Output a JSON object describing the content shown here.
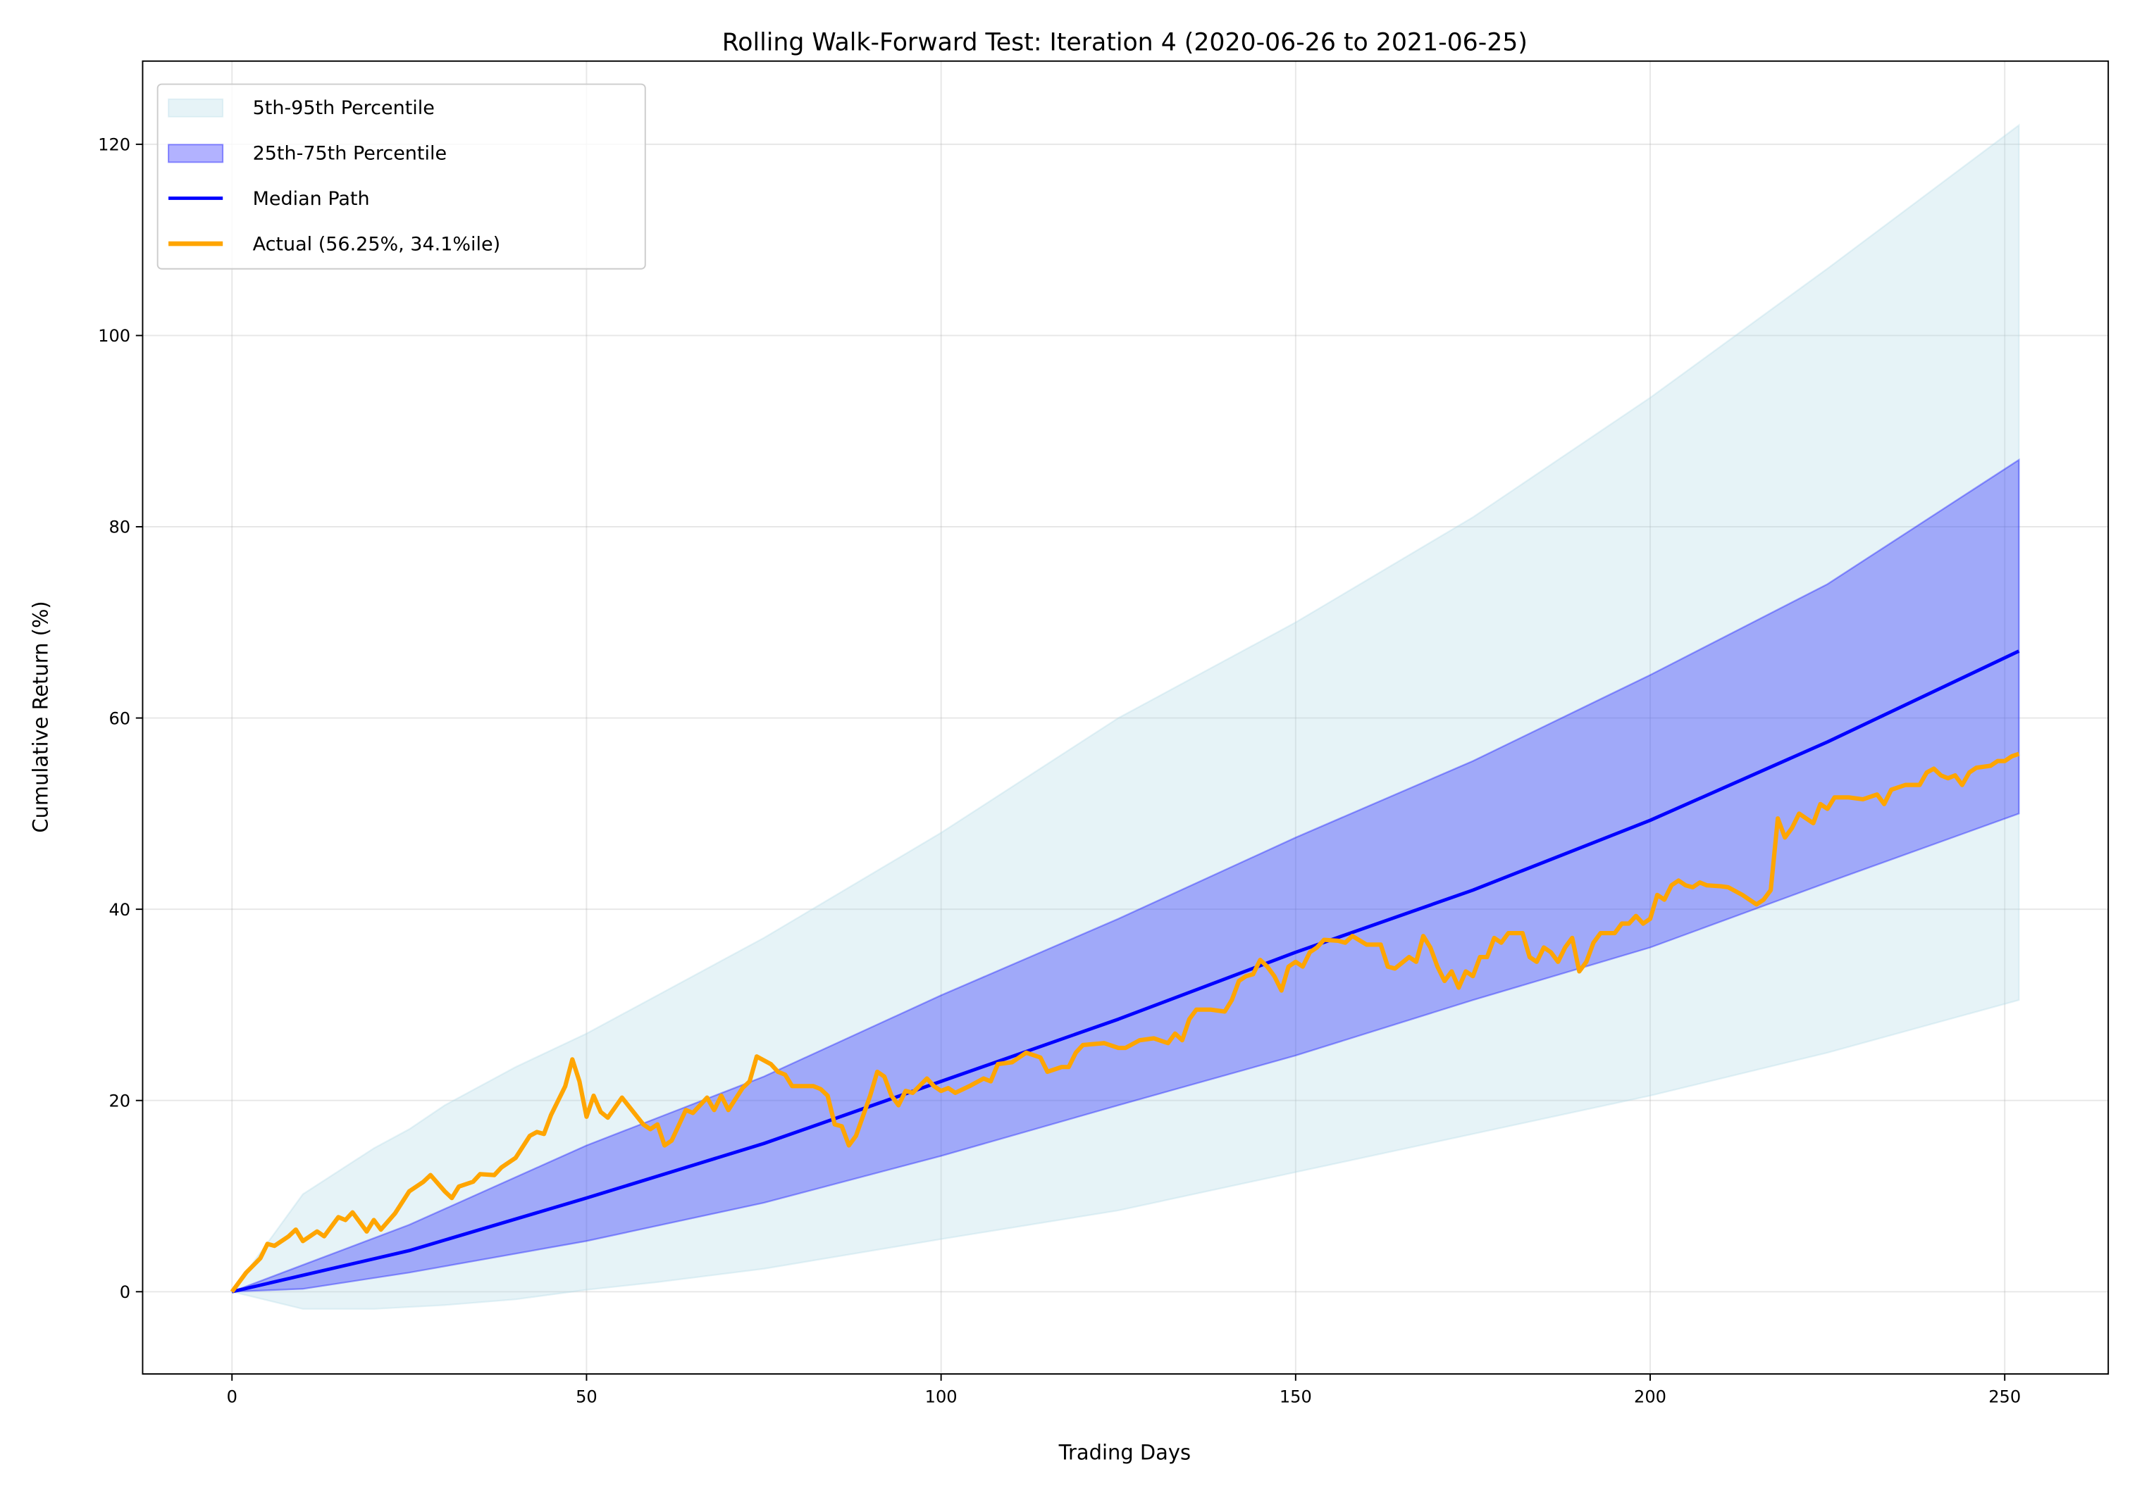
{
  "chart_data": {
    "type": "line",
    "title": "Rolling Walk-Forward Test: Iteration 4 (2020-06-26 to 2021-06-25)",
    "xlabel": "Trading Days",
    "ylabel": "Cumulative Return (%)",
    "xlim": [
      -12.6,
      264.6
    ],
    "ylim": [
      -8.6,
      128.7
    ],
    "xticks": [
      0,
      50,
      100,
      150,
      200,
      250
    ],
    "yticks": [
      0,
      20,
      40,
      60,
      80,
      100,
      120
    ],
    "grid": true,
    "legend_position": "top-left",
    "bands": [
      {
        "name": "5th-95th Percentile",
        "color": "#add8e6",
        "opacity": 0.3,
        "x": [
          0,
          10,
          20,
          25,
          30,
          40,
          50,
          60,
          75,
          100,
          125,
          150,
          175,
          200,
          225,
          252
        ],
        "lower": [
          0,
          -1.8,
          -1.8,
          -1.6,
          -1.4,
          -0.8,
          0.2,
          1.0,
          2.4,
          5.5,
          8.5,
          12.5,
          16.5,
          20.5,
          25,
          30.5
        ],
        "upper": [
          0,
          10.2,
          15,
          17,
          19.5,
          23.5,
          27,
          31,
          37,
          48,
          60,
          70,
          81,
          93.5,
          107,
          122
        ]
      },
      {
        "name": "25th-75th Percentile",
        "color": "#0000ff",
        "opacity": 0.3,
        "x": [
          0,
          10,
          25,
          50,
          75,
          100,
          125,
          150,
          175,
          200,
          225,
          252
        ],
        "lower": [
          0,
          0.3,
          2,
          5.3,
          9.3,
          14.2,
          19.5,
          24.7,
          30.5,
          36,
          42.8,
          50
        ],
        "upper": [
          0,
          2.8,
          7,
          15.3,
          22.5,
          31,
          39,
          47.5,
          55.5,
          64.5,
          74,
          87
        ]
      }
    ],
    "series": [
      {
        "name": "Median Path",
        "color": "#0000ff",
        "x": [
          0,
          25,
          50,
          75,
          100,
          125,
          150,
          175,
          200,
          225,
          252
        ],
        "y": [
          0,
          4.3,
          9.8,
          15.5,
          22,
          28.5,
          35.5,
          42,
          49.3,
          57.5,
          67
        ]
      },
      {
        "name": "Actual (56.25%, 34.1%ile)",
        "color": "#ffa500",
        "x": [
          0,
          2,
          4,
          5,
          6,
          8,
          9,
          10,
          12,
          13,
          15,
          16,
          17,
          19,
          20,
          21,
          23,
          25,
          27,
          28,
          30,
          31,
          32,
          34,
          35,
          37,
          38,
          40,
          42,
          43,
          44,
          45,
          47,
          48,
          49,
          50,
          51,
          52,
          53,
          55,
          58,
          59,
          60,
          61,
          62,
          64,
          65,
          67,
          68,
          69,
          70,
          72,
          73,
          74,
          76,
          77,
          78,
          79,
          82,
          83,
          84,
          85,
          86,
          87,
          88,
          90,
          91,
          92,
          93,
          94,
          95,
          96,
          98,
          99,
          100,
          101,
          102,
          104,
          106,
          107,
          108,
          110,
          112,
          114,
          115,
          117,
          118,
          119,
          120,
          123,
          125,
          126,
          128,
          130,
          132,
          133,
          134,
          135,
          136,
          138,
          140,
          141,
          142,
          143,
          144,
          145,
          146,
          147,
          148,
          149,
          150,
          151,
          152,
          153,
          154,
          156,
          157,
          158,
          160,
          162,
          163,
          164,
          166,
          167,
          168,
          169,
          170,
          171,
          172,
          173,
          174,
          175,
          176,
          177,
          178,
          179,
          180,
          182,
          183,
          184,
          185,
          186,
          187,
          188,
          189,
          190,
          191,
          192,
          193,
          195,
          196,
          197,
          198,
          199,
          200,
          201,
          202,
          203,
          204,
          205,
          206,
          207,
          208,
          210,
          211,
          213,
          214,
          215,
          216,
          217,
          218,
          219,
          220,
          221,
          222,
          223,
          224,
          225,
          226,
          228,
          230,
          232,
          233,
          234,
          236,
          238,
          239,
          240,
          241,
          242,
          243,
          244,
          245,
          246,
          248,
          249,
          250,
          251,
          252
        ],
        "y": [
          0,
          2,
          3.5,
          5,
          4.8,
          5.8,
          6.5,
          5.3,
          6.3,
          5.8,
          7.8,
          7.5,
          8.3,
          6.3,
          7.5,
          6.5,
          8.2,
          10.5,
          11.5,
          12.2,
          10.5,
          9.8,
          11,
          11.5,
          12.3,
          12.2,
          13,
          14,
          16.3,
          16.7,
          16.5,
          18.5,
          21.5,
          24.3,
          22,
          18.3,
          20.5,
          18.8,
          18.2,
          20.3,
          17.5,
          17,
          17.5,
          15.3,
          15.8,
          19,
          18.7,
          20.3,
          19,
          20.5,
          19,
          21.3,
          22,
          24.6,
          23.8,
          23,
          22.7,
          21.5,
          21.5,
          21.2,
          20.5,
          17.5,
          17.3,
          15.3,
          16.3,
          20.5,
          23,
          22.5,
          20.5,
          19.5,
          21,
          20.8,
          22.3,
          21.5,
          21,
          21.3,
          20.8,
          21.5,
          22.3,
          22,
          23.8,
          24,
          25,
          24.5,
          23,
          23.5,
          23.5,
          25,
          25.8,
          26,
          25.5,
          25.5,
          26.3,
          26.5,
          26,
          27,
          26.3,
          28.5,
          29.5,
          29.5,
          29.3,
          30.5,
          32.5,
          33,
          33.2,
          34.7,
          34,
          33,
          31.5,
          34,
          34.5,
          34,
          35.5,
          36,
          36.8,
          36.7,
          36.5,
          37.2,
          36.3,
          36.3,
          34,
          33.8,
          35,
          34.5,
          37.2,
          36,
          34,
          32.5,
          33.5,
          31.8,
          33.5,
          33,
          35,
          35,
          37,
          36.5,
          37.5,
          37.5,
          35,
          34.5,
          36,
          35.5,
          34.5,
          36,
          37,
          33.5,
          34.5,
          36.5,
          37.5,
          37.5,
          38.5,
          38.5,
          39.3,
          38.5,
          39,
          41.5,
          41,
          42.5,
          43,
          42.5,
          42.3,
          42.8,
          42.5,
          42.4,
          42.3,
          41.5,
          41,
          40.5,
          41,
          42,
          49.5,
          47.5,
          48.5,
          50,
          49.5,
          49,
          51,
          50.5,
          51.7,
          51.7,
          51.5,
          52,
          51,
          52.5,
          53,
          53,
          54.3,
          54.7,
          54,
          53.7,
          54,
          53,
          54.3,
          54.8,
          55,
          55.5,
          55.5,
          56,
          56.25
        ]
      }
    ],
    "legend": [
      "5th-95th Percentile",
      "25th-75th Percentile",
      "Median Path",
      "Actual (56.25%, 34.1%ile)"
    ]
  }
}
